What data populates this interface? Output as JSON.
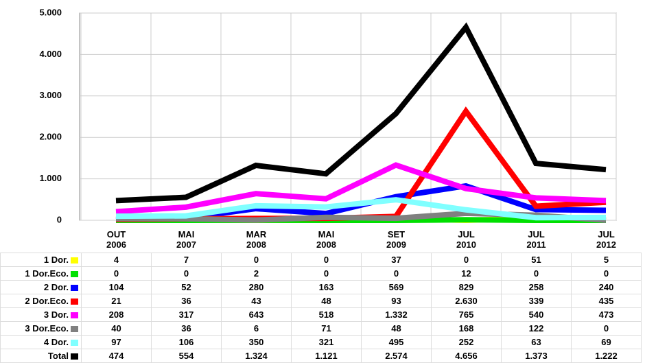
{
  "chart_data": {
    "type": "line",
    "categories": [
      "OUT 2006",
      "MAI 2007",
      "MAR 2008",
      "MAI 2008",
      "SET 2009",
      "JUL 2010",
      "JUL 2011",
      "JUL 2012"
    ],
    "ylim": [
      0,
      5000
    ],
    "yticks": [
      0,
      {
        "value": 1000,
        "label": "1.000"
      },
      {
        "value": 2000,
        "label": "2.000"
      },
      {
        "value": 3000,
        "label": "3.000"
      },
      {
        "value": 4000,
        "label": "4.000"
      },
      {
        "value": 5000,
        "label": "5.000"
      }
    ],
    "grid": true,
    "series": [
      {
        "name": "1 Dor.",
        "color": "#ffff00",
        "values": [
          4,
          7,
          0,
          0,
          37,
          0,
          51,
          5
        ]
      },
      {
        "name": "1 Dor.Eco.",
        "color": "#00e000",
        "values": [
          0,
          0,
          2,
          0,
          0,
          12,
          0,
          0
        ]
      },
      {
        "name": "2 Dor.",
        "color": "#0000ff",
        "values": [
          104,
          52,
          280,
          163,
          569,
          829,
          258,
          240
        ]
      },
      {
        "name": "2 Dor.Eco.",
        "color": "#ff0000",
        "values": [
          21,
          36,
          43,
          48,
          93,
          2630,
          339,
          435
        ],
        "value_labels": [
          "21",
          "36",
          "43",
          "48",
          "93",
          "2.630",
          "339",
          "435"
        ]
      },
      {
        "name": "3 Dor.",
        "color": "#ff00ff",
        "values": [
          208,
          317,
          643,
          518,
          1332,
          765,
          540,
          473
        ],
        "value_labels": [
          "208",
          "317",
          "643",
          "518",
          "1.332",
          "765",
          "540",
          "473"
        ]
      },
      {
        "name": "3 Dor.Eco.",
        "color": "#808080",
        "values": [
          40,
          36,
          6,
          71,
          48,
          168,
          122,
          0
        ]
      },
      {
        "name": "4 Dor.",
        "color": "#80ffff",
        "values": [
          97,
          106,
          350,
          321,
          495,
          252,
          63,
          69
        ]
      },
      {
        "name": "Total",
        "color": "#000000",
        "values": [
          474,
          554,
          1324,
          1121,
          2574,
          4656,
          1373,
          1222
        ],
        "value_labels": [
          "474",
          "554",
          "1.324",
          "1.121",
          "2.574",
          "4.656",
          "1.373",
          "1.222"
        ]
      }
    ]
  }
}
